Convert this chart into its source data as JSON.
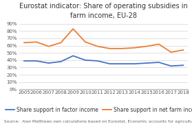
{
  "title": "Eurostat indicator: Share of operating subsidies in\nfarm income, EU-28",
  "years": [
    2005,
    2006,
    2007,
    2008,
    2009,
    2010,
    2011,
    2012,
    2013,
    2014,
    2015,
    2016,
    2017,
    2018
  ],
  "factor_income": [
    0.39,
    0.39,
    0.36,
    0.38,
    0.46,
    0.4,
    0.39,
    0.35,
    0.35,
    0.35,
    0.36,
    0.37,
    0.32,
    0.33
  ],
  "net_farm_income": [
    0.64,
    0.65,
    0.59,
    0.64,
    0.83,
    0.65,
    0.59,
    0.56,
    0.56,
    0.57,
    0.59,
    0.62,
    0.51,
    0.54
  ],
  "factor_color": "#4472c4",
  "net_farm_color": "#ed7d31",
  "ylabel_ticks": [
    0.0,
    0.1,
    0.2,
    0.3,
    0.4,
    0.5,
    0.6,
    0.7,
    0.8,
    0.9
  ],
  "ylim": [
    0,
    0.92
  ],
  "source_text": "Source:  Alan Matthews own calculations based on Eurostat, Economic accounts for agriculture at current prices.",
  "legend_factor": "Share support in factor income",
  "legend_net": "Share support in net farm income",
  "background_color": "#ffffff",
  "grid_color": "#d9d9d9",
  "title_fontsize": 7.0,
  "tick_fontsize": 5.0,
  "legend_fontsize": 5.5,
  "source_fontsize": 4.2,
  "line_width": 1.3
}
